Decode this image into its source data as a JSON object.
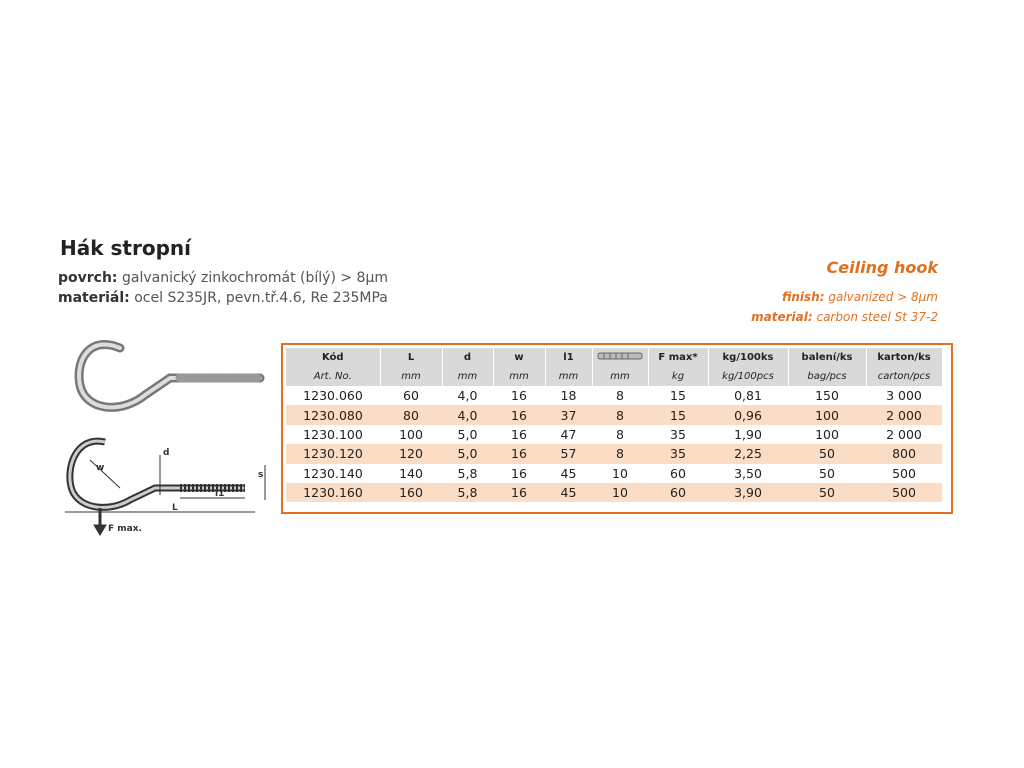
{
  "header": {
    "title": "Hák stropní",
    "specs": [
      {
        "label": "povrch:",
        "value": "galvanický zinkochromát (bílý) > 8µm"
      },
      {
        "label": "materiál:",
        "value": "ocel S235JR, pevn.tř.4.6, Re 235MPa"
      }
    ]
  },
  "english": {
    "title": "Ceiling hook",
    "specs": [
      {
        "label": "finish:",
        "value": "galvanized > 8µm"
      },
      {
        "label": "material:",
        "value": "carbon steel St 37-2"
      }
    ]
  },
  "diagram": {
    "labels": {
      "d": "d",
      "w": "w",
      "s": "s",
      "l1": "l1",
      "L": "L",
      "fmax": "F max."
    }
  },
  "table": {
    "columns": [
      {
        "name": "Kód",
        "unit": "Art. No."
      },
      {
        "name": "L",
        "unit": "mm"
      },
      {
        "name": "d",
        "unit": "mm"
      },
      {
        "name": "w",
        "unit": "mm"
      },
      {
        "name": "l1",
        "unit": "mm"
      },
      {
        "unit": "mm"
      },
      {
        "name": "F max*",
        "unit": "kg"
      },
      {
        "name": "kg/100ks",
        "unit": "kg/100pcs"
      },
      {
        "name": "balení/ks",
        "unit": "bag/pcs"
      },
      {
        "name": "karton/ks",
        "unit": "carton/pcs"
      }
    ],
    "rows": [
      [
        "1230.060",
        "60",
        "4,0",
        "16",
        "18",
        "8",
        "15",
        "0,81",
        "150",
        "3 000"
      ],
      [
        "1230.080",
        "80",
        "4,0",
        "16",
        "37",
        "8",
        "15",
        "0,96",
        "100",
        "2 000"
      ],
      [
        "1230.100",
        "100",
        "5,0",
        "16",
        "47",
        "8",
        "35",
        "1,90",
        "100",
        "2 000"
      ],
      [
        "1230.120",
        "120",
        "5,0",
        "16",
        "57",
        "8",
        "35",
        "2,25",
        "50",
        "800"
      ],
      [
        "1230.140",
        "140",
        "5,8",
        "16",
        "45",
        "10",
        "60",
        "3,50",
        "50",
        "500"
      ],
      [
        "1230.160",
        "160",
        "5,8",
        "16",
        "45",
        "10",
        "60",
        "3,90",
        "50",
        "500"
      ]
    ]
  }
}
